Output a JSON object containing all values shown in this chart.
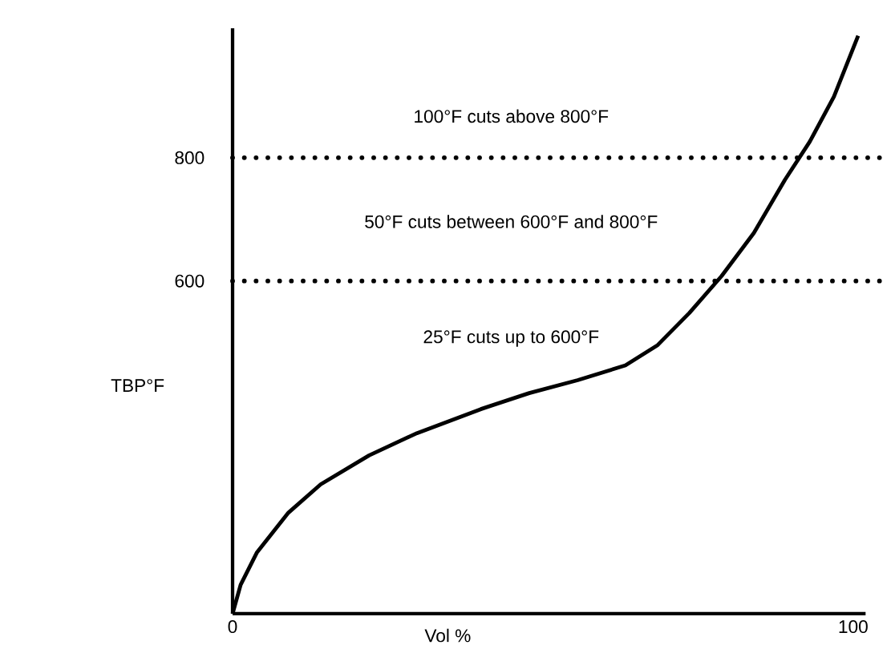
{
  "chart_data": {
    "type": "line",
    "xlabel": "Vol %",
    "ylabel": "TBP°F",
    "x": [
      0,
      1.3,
      3.9,
      9,
      14.2,
      22,
      29.7,
      40,
      47.8,
      55.6,
      63.3,
      68.5,
      73.6,
      78.8,
      84,
      89,
      93,
      96.9,
      100.8
    ],
    "values": [
      60,
      107,
      159,
      224,
      270,
      317,
      353,
      392,
      418,
      439,
      463,
      496,
      548,
      608,
      678,
      764,
      826,
      899,
      998
    ],
    "color": "#000000",
    "line_style": "solid",
    "marker": "none",
    "grid": false,
    "xlim": [
      0,
      102
    ],
    "ylim": [
      60,
      1010
    ],
    "xticks": [
      0,
      100
    ],
    "yticks": [
      600,
      800
    ],
    "ref_lines": [
      {
        "axis": "y",
        "value": 800,
        "color": "#000000",
        "line_style": "dotted"
      },
      {
        "axis": "y",
        "value": 600,
        "color": "#000000",
        "line_style": "dotted"
      }
    ],
    "annotations": [
      "100°F cuts above 800°F",
      "50°F cuts between 600°F and 800°F",
      "25°F cuts up to 600°F"
    ]
  }
}
